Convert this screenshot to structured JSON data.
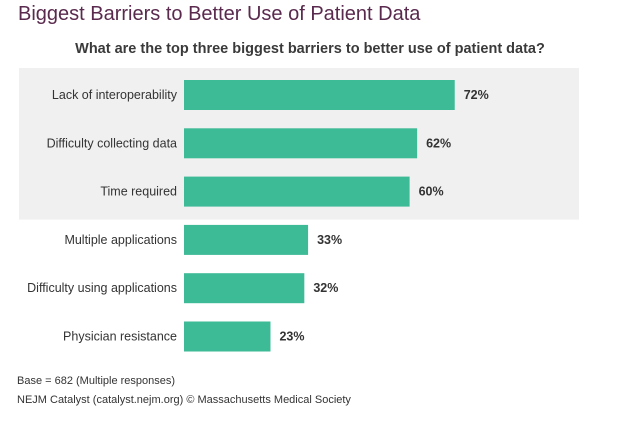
{
  "page": {
    "title": "Biggest Barriers to Better Use of Patient Data",
    "footnote_base": "Base = 682 (Multiple responses)",
    "footnote_source": "NEJM Catalyst (catalyst.nejm.org) © Massachusetts Medical Society"
  },
  "colors": {
    "bar": "#3dba96",
    "highlight_band": "#f0f0f0",
    "title": "#5a2a4e"
  },
  "chart_data": {
    "type": "bar",
    "orientation": "horizontal",
    "title": "What are the top three biggest barriers to better use of patient data?",
    "categories": [
      "Lack of interoperability",
      "Difficulty collecting data",
      "Time required",
      "Multiple applications",
      "Difficulty using applications",
      "Physician resistance"
    ],
    "values": [
      72,
      62,
      60,
      33,
      32,
      23
    ],
    "value_labels": [
      "72%",
      "62%",
      "60%",
      "33%",
      "32%",
      "23%"
    ],
    "unit": "%",
    "highlighted_count": 3,
    "xlim": [
      0,
      100
    ],
    "grid": false,
    "legend": "none"
  }
}
